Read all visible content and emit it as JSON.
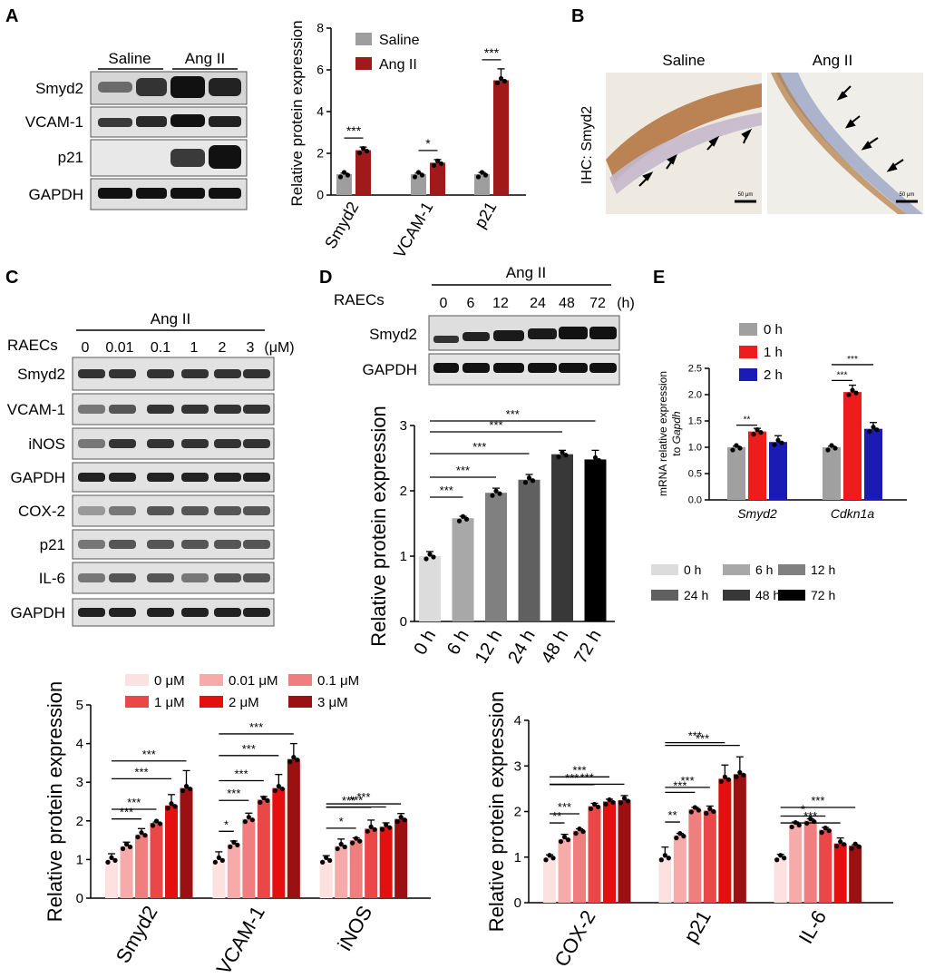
{
  "panel_labels": {
    "A": "A",
    "B": "B",
    "C": "C",
    "D": "D",
    "E": "E"
  },
  "colors": {
    "saline": "#9e9e9e",
    "angii": "#a11a1a",
    "e0": "#a0a0a0",
    "e1": "#ee1c1c",
    "e2": "#1a1ab4",
    "d0": "#dcdcdc",
    "d6": "#a8a8a8",
    "d12": "#808080",
    "d24": "#606060",
    "d48": "#383838",
    "d72": "#000000",
    "c0": "#fde0e0",
    "c001": "#f7aaaa",
    "c01": "#f07e7e",
    "c1": "#ea4848",
    "c2": "#e41010",
    "c3": "#9b1010"
  },
  "blotA": {
    "group_labels": [
      "Saline",
      "Ang II"
    ],
    "rows": [
      "Smyd2",
      "VCAM-1",
      "p21",
      "GAPDH"
    ]
  },
  "ihc": {
    "ylabel": "IHC: Smyd2",
    "titles": [
      "Saline",
      "Ang II"
    ],
    "scalebar": "50 μm"
  },
  "blotC": {
    "treatment": "Ang II",
    "cells": "RAECs",
    "doses": [
      "0",
      "0.01",
      "0.1",
      "1",
      "2",
      "3"
    ],
    "unit": "(μM)",
    "rows": [
      "Smyd2",
      "VCAM-1",
      "iNOS",
      "GAPDH",
      "COX-2",
      "p21",
      "IL-6",
      "GAPDH"
    ]
  },
  "blotD": {
    "treatment": "Ang II",
    "cells": "RAECs",
    "times": [
      "0",
      "6",
      "12",
      "24",
      "48",
      "72"
    ],
    "unit": "(h)",
    "rows": [
      "Smyd2",
      "GAPDH"
    ]
  },
  "chart_data": [
    {
      "id": "A",
      "type": "bar",
      "ylabel": "Relative protein expression",
      "ylim": [
        0,
        8
      ],
      "yticks": [
        "0",
        "2",
        "4",
        "6",
        "8"
      ],
      "categories": [
        "Smyd2",
        "VCAM-1",
        "p21"
      ],
      "series": [
        {
          "name": "Saline",
          "values": [
            1.0,
            1.0,
            1.0
          ],
          "err": [
            0.05,
            0.05,
            0.08
          ]
        },
        {
          "name": "Ang II",
          "values": [
            2.15,
            1.55,
            5.5
          ],
          "err": [
            0.15,
            0.15,
            0.55
          ]
        }
      ],
      "significance": [
        "***",
        "*",
        "***"
      ],
      "legend": "top-left"
    },
    {
      "id": "D",
      "type": "bar",
      "ylabel": "Relative protein expression",
      "ylim": [
        0,
        3
      ],
      "yticks": [
        "0",
        "1",
        "2",
        "3"
      ],
      "categories": [
        "0 h",
        "6 h",
        "12 h",
        "24 h",
        "48 h",
        "72 h"
      ],
      "values": [
        1.0,
        1.58,
        1.97,
        2.17,
        2.56,
        2.48
      ],
      "err": [
        0.07,
        0.03,
        0.07,
        0.08,
        0.06,
        0.14
      ],
      "significance": [
        "***",
        "***",
        "***",
        "***",
        "***"
      ],
      "legend_entries": [
        "0 h",
        "6 h",
        "12 h",
        "24 h",
        "48 h",
        "72 h"
      ]
    },
    {
      "id": "E",
      "type": "bar",
      "ylabel_line1": "mRNA relative expression",
      "ylabel_line2_prefix": "to ",
      "ylabel_line2_gene": "Gapdh",
      "ylim": [
        0,
        2.5
      ],
      "yticks": [
        "0.0",
        "0.5",
        "1.0",
        "1.5",
        "2.0",
        "2.5"
      ],
      "categories": [
        "Smyd2",
        "Cdkn1a"
      ],
      "series": [
        {
          "name": "0 h",
          "values": [
            1.0,
            1.0
          ],
          "err": [
            0.02,
            0.02
          ]
        },
        {
          "name": "1 h",
          "values": [
            1.3,
            2.05
          ],
          "err": [
            0.06,
            0.13
          ]
        },
        {
          "name": "2 h",
          "values": [
            1.1,
            1.35
          ],
          "err": [
            0.12,
            0.12
          ]
        }
      ],
      "significance": [
        [
          "**"
        ],
        [
          "***",
          "***"
        ]
      ]
    },
    {
      "id": "C-left",
      "type": "bar",
      "ylabel": "Relative protein expression",
      "ylim": [
        0,
        5
      ],
      "yticks": [
        "0",
        "1",
        "2",
        "3",
        "4",
        "5"
      ],
      "categories": [
        "Smyd2",
        "VCAM-1",
        "iNOS"
      ],
      "series": [
        {
          "name": "0 μM",
          "values": [
            1.0,
            1.0,
            1.0
          ],
          "err": [
            0.15,
            0.2,
            0.1
          ]
        },
        {
          "name": "0.01 μM",
          "values": [
            1.35,
            1.4,
            1.35
          ],
          "err": [
            0.1,
            0.08,
            0.18
          ]
        },
        {
          "name": "0.1 μM",
          "values": [
            1.65,
            2.05,
            1.5
          ],
          "err": [
            0.15,
            0.15,
            0.06
          ]
        },
        {
          "name": "1 μM",
          "values": [
            1.95,
            2.55,
            1.8
          ],
          "err": [
            0.02,
            0.08,
            0.22
          ]
        },
        {
          "name": "2 μM",
          "values": [
            2.4,
            2.85,
            1.85
          ],
          "err": [
            0.28,
            0.35,
            0.1
          ]
        },
        {
          "name": "3 μM",
          "values": [
            2.85,
            3.6,
            2.05
          ],
          "err": [
            0.45,
            0.4,
            0.14
          ]
        }
      ],
      "significance": [
        [
          "***",
          "***",
          "***",
          "***"
        ],
        [
          "*",
          "***",
          "***",
          "***",
          "***"
        ],
        [
          "*",
          "***",
          "***",
          "***"
        ]
      ],
      "legend_entries": [
        "0 μM",
        "0.01 μM",
        "0.1 μM",
        "1 μM",
        "2 μM",
        "3 μM"
      ]
    },
    {
      "id": "C-right",
      "type": "bar",
      "ylabel": "Relative protein expression",
      "ylim": [
        0,
        4
      ],
      "yticks": [
        "0",
        "1",
        "2",
        "3",
        "4"
      ],
      "categories": [
        "COX-2",
        "p21",
        "IL-6"
      ],
      "series": [
        {
          "name": "0 μM",
          "values": [
            1.0,
            1.0,
            1.0
          ],
          "err": [
            0.05,
            0.22,
            0.06
          ]
        },
        {
          "name": "0.01 μM",
          "values": [
            1.4,
            1.48,
            1.72
          ],
          "err": [
            0.1,
            0.04,
            0.05
          ]
        },
        {
          "name": "0.1 μM",
          "values": [
            1.58,
            2.05,
            1.8
          ],
          "err": [
            0.04,
            0.04,
            0.04
          ]
        },
        {
          "name": "1 μM",
          "values": [
            2.12,
            2.02,
            1.6
          ],
          "err": [
            0.06,
            0.1,
            0.05
          ]
        },
        {
          "name": "2 μM",
          "values": [
            2.22,
            2.72,
            1.3
          ],
          "err": [
            0.05,
            0.3,
            0.12
          ]
        },
        {
          "name": "3 μM",
          "values": [
            2.25,
            2.82,
            1.25
          ],
          "err": [
            0.1,
            0.38,
            0.02
          ]
        }
      ],
      "significance": [
        [
          "**",
          "***",
          "***",
          "***",
          "***"
        ],
        [
          "**",
          "***",
          "***",
          "***",
          "***"
        ],
        [
          "*",
          "***",
          "***"
        ]
      ]
    }
  ]
}
